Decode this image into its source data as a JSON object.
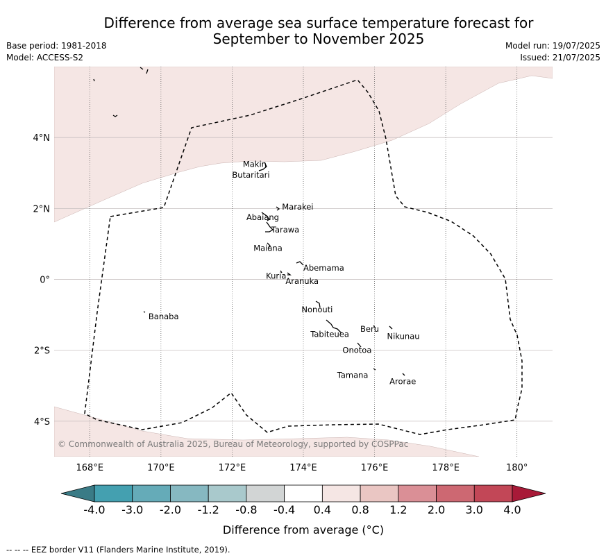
{
  "title_line1": "Difference from average sea surface temperature forecast for",
  "title_line2": "September to November 2025",
  "meta_left": {
    "base_period": "Base period: 1981-2018",
    "model": "Model: ACCESS-S2"
  },
  "meta_right": {
    "model_run": "Model run: 19/07/2025",
    "issued": "Issued: 21/07/2025"
  },
  "map": {
    "lon_range": [
      167,
      181
    ],
    "lat_range": [
      -5,
      6
    ],
    "lon_ticks": [
      {
        "value": 168,
        "label": "168°E"
      },
      {
        "value": 170,
        "label": "170°E"
      },
      {
        "value": 172,
        "label": "172°E"
      },
      {
        "value": 174,
        "label": "174°E"
      },
      {
        "value": 176,
        "label": "176°E"
      },
      {
        "value": 178,
        "label": "178°E"
      },
      {
        "value": 180,
        "label": "180°"
      }
    ],
    "lat_ticks": [
      {
        "value": 4,
        "label": "4°N"
      },
      {
        "value": 2,
        "label": "2°N"
      },
      {
        "value": 0,
        "label": "0°"
      },
      {
        "value": -2,
        "label": "2°S"
      },
      {
        "value": -4,
        "label": "4°S"
      }
    ],
    "anomaly_fill_color": "#f5e6e4",
    "anomaly_fill_category": "0.4 to 0.8",
    "places": [
      {
        "name": "Makin",
        "lon": 172.3,
        "lat": 3.25
      },
      {
        "name": "Butaritari",
        "lon": 172.0,
        "lat": 2.95
      },
      {
        "name": "Marakei",
        "lon": 173.4,
        "lat": 2.05
      },
      {
        "name": "Abaiang",
        "lon": 172.4,
        "lat": 1.75
      },
      {
        "name": "Tarawa",
        "lon": 173.1,
        "lat": 1.4
      },
      {
        "name": "Maiana",
        "lon": 172.6,
        "lat": 0.88
      },
      {
        "name": "Abemama",
        "lon": 174.0,
        "lat": 0.32
      },
      {
        "name": "Kuria",
        "lon": 172.95,
        "lat": 0.1
      },
      {
        "name": "Aranuka",
        "lon": 173.5,
        "lat": -0.05
      },
      {
        "name": "Banaba",
        "lon": 169.65,
        "lat": -1.05
      },
      {
        "name": "Nonouti",
        "lon": 173.95,
        "lat": -0.85
      },
      {
        "name": "Beru",
        "lon": 175.6,
        "lat": -1.4
      },
      {
        "name": "Nikunau",
        "lon": 176.35,
        "lat": -1.6
      },
      {
        "name": "Tabiteuea",
        "lon": 174.2,
        "lat": -1.55
      },
      {
        "name": "Onotoa",
        "lon": 175.1,
        "lat": -2.0
      },
      {
        "name": "Tamana",
        "lon": 174.95,
        "lat": -2.7
      },
      {
        "name": "Arorae",
        "lon": 176.42,
        "lat": -2.88
      }
    ],
    "copyright": "© Commonwealth of Australia 2025, Bureau of Meteorology, supported by COSPPac"
  },
  "colorbar": {
    "label": "Difference from average (°C)",
    "ticks": [
      "-4.0",
      "-3.0",
      "-2.0",
      "-1.2",
      "-0.8",
      "-0.4",
      "0.4",
      "0.8",
      "1.2",
      "2.0",
      "3.0",
      "4.0"
    ],
    "under_color": "#3a7b86",
    "over_color": "#a81a38",
    "colors": [
      "#44a0b0",
      "#65abb8",
      "#86b8c1",
      "#a9c9cc",
      "#d2d5d5",
      "#ffffff",
      "#f5e6e4",
      "#eac6c3",
      "#da8f96",
      "#cd6872",
      "#c24757"
    ]
  },
  "footnote": "--  --  -- EEZ border V11 (Flanders Marine Institute, 2019)."
}
